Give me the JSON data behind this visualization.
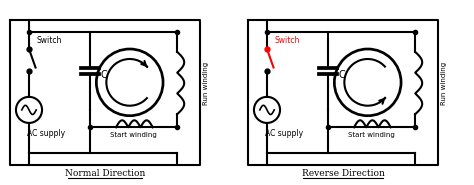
{
  "title_left": "Normal Direction",
  "title_right": "Reverse Direction",
  "label_switch": "Switch",
  "label_ac": "AC supply",
  "label_cap": "C",
  "label_start": "Start winding",
  "label_run": "Run winding",
  "bg_color": "#ffffff",
  "line_color": "#000000",
  "red_color": "#ff0000",
  "lw": 1.5
}
